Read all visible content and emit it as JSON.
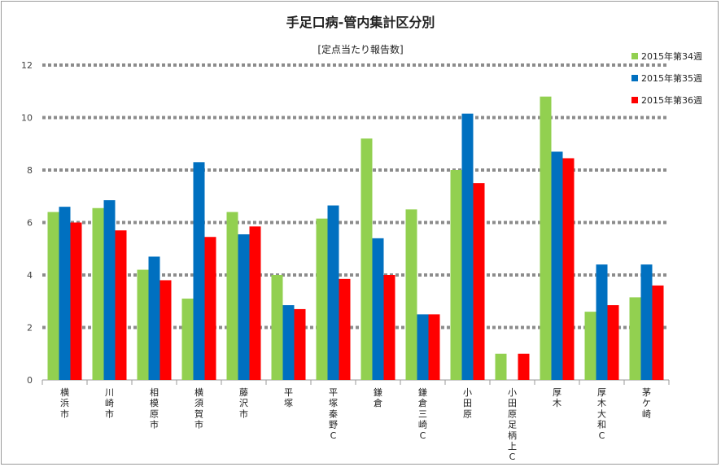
{
  "chart_data": {
    "type": "bar",
    "title": "手足口病-管内集計区分別",
    "subtitle": "[定点当たり報告数]",
    "xlabel": "",
    "ylabel": "",
    "ylim": [
      0,
      12
    ],
    "yticks": [
      0,
      2,
      4,
      6,
      8,
      10,
      12
    ],
    "grid": true,
    "legend_position": "top-right",
    "categories": [
      "横浜市",
      "川崎市",
      "相模原市",
      "横須賀市",
      "藤沢市",
      "平塚",
      "平塚秦野C",
      "鎌倉",
      "鎌倉三崎C",
      "小田原",
      "小田原足柄上C",
      "厚木",
      "厚木大和C",
      "茅ケ崎"
    ],
    "series": [
      {
        "name": "2015年第34週",
        "color": "#92d050",
        "values": [
          6.4,
          6.55,
          4.2,
          3.1,
          6.4,
          4.0,
          6.15,
          9.2,
          6.5,
          8.0,
          1.0,
          10.8,
          2.6,
          3.15
        ]
      },
      {
        "name": "2015年第35週",
        "color": "#0070c0",
        "values": [
          6.6,
          6.85,
          4.7,
          8.3,
          5.55,
          2.85,
          6.65,
          5.4,
          2.5,
          10.15,
          0,
          8.7,
          4.4,
          4.4
        ]
      },
      {
        "name": "2015年第36週",
        "color": "#ff0000",
        "values": [
          6.0,
          5.7,
          3.8,
          5.45,
          5.85,
          2.7,
          3.85,
          4.0,
          2.5,
          7.5,
          1.0,
          8.45,
          2.85,
          3.6
        ]
      }
    ]
  }
}
